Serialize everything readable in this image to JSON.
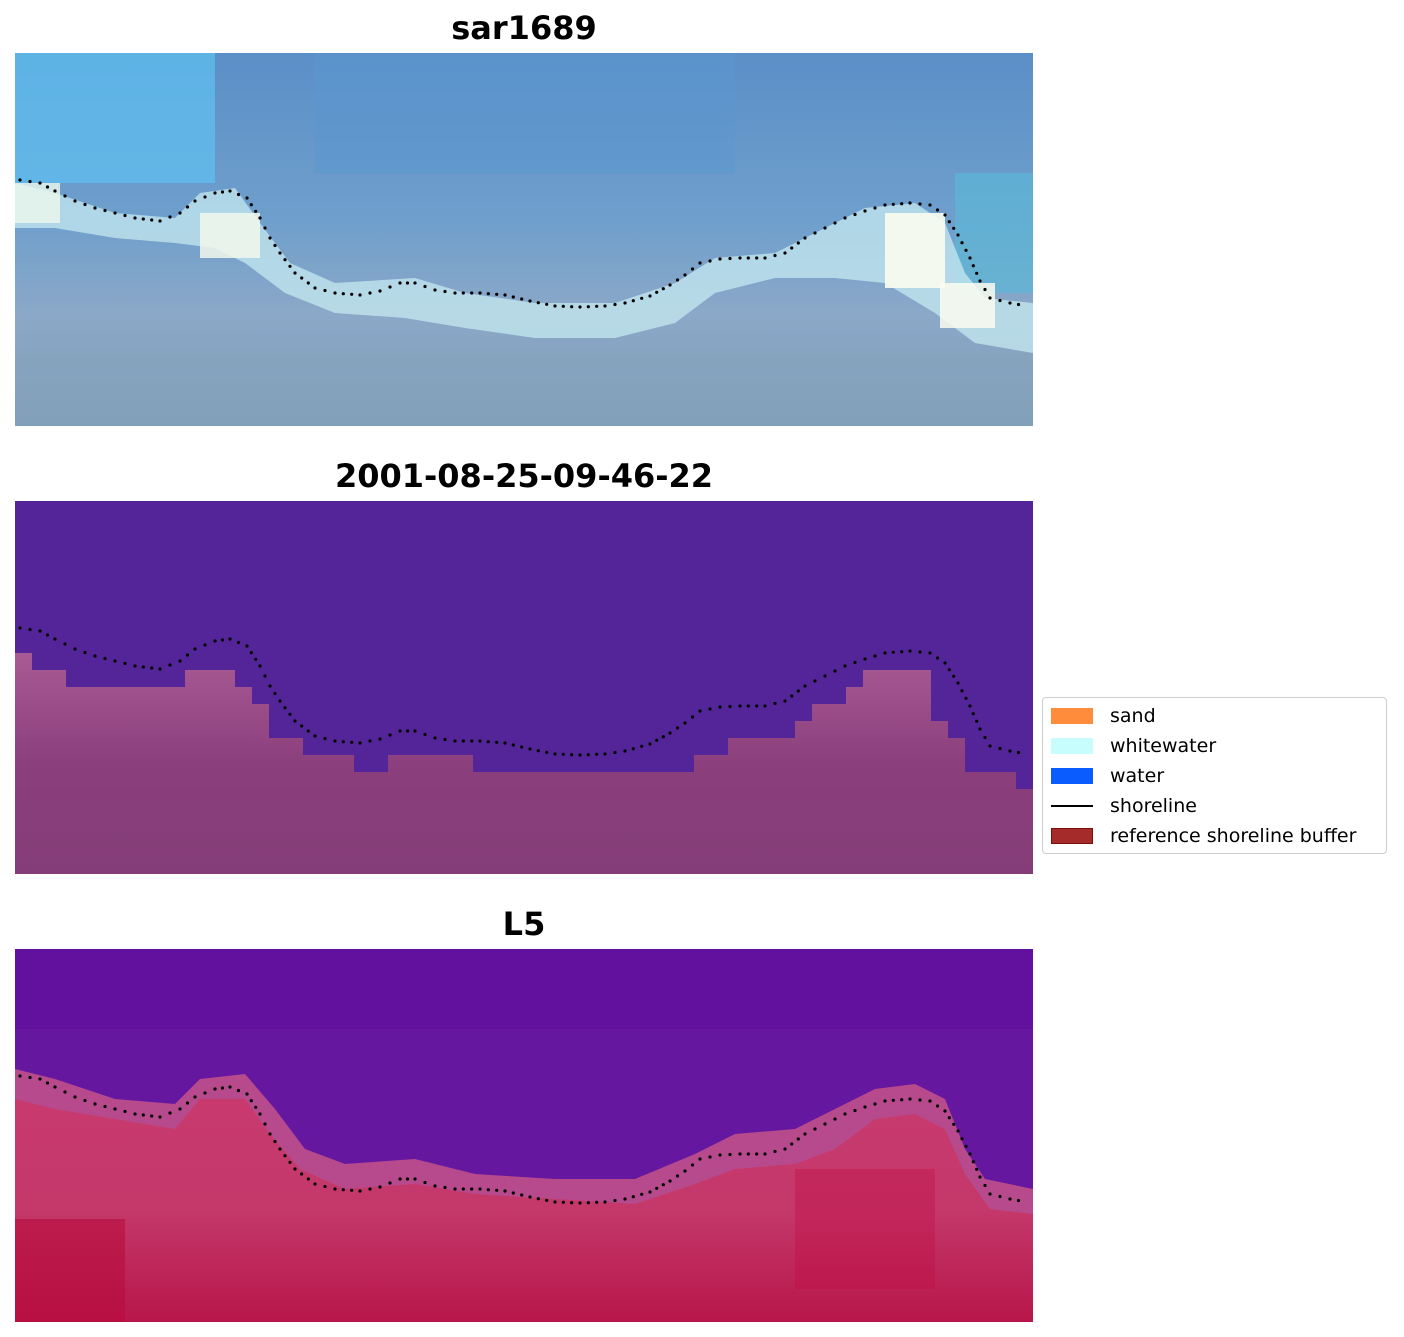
{
  "panels": [
    {
      "title": "sar1689",
      "kind": "rgb"
    },
    {
      "title": "2001-08-25-09-46-22",
      "kind": "classification"
    },
    {
      "title": "L5",
      "kind": "index"
    }
  ],
  "legend": {
    "items": [
      {
        "label": "sand",
        "color": "#ff8c3a",
        "type": "patch"
      },
      {
        "label": "whitewater",
        "color": "#c8fdfd",
        "type": "patch"
      },
      {
        "label": "water",
        "color": "#0a5cff",
        "type": "patch"
      },
      {
        "label": "shoreline",
        "color": "#000000",
        "type": "line"
      },
      {
        "label": "reference shoreline buffer",
        "color": "#a52a2a",
        "type": "patch"
      }
    ]
  },
  "colors": {
    "class_water_overlay": "#542598",
    "class_land_overlay": "#8a3c7c",
    "shoreline_dots": "#000000"
  }
}
